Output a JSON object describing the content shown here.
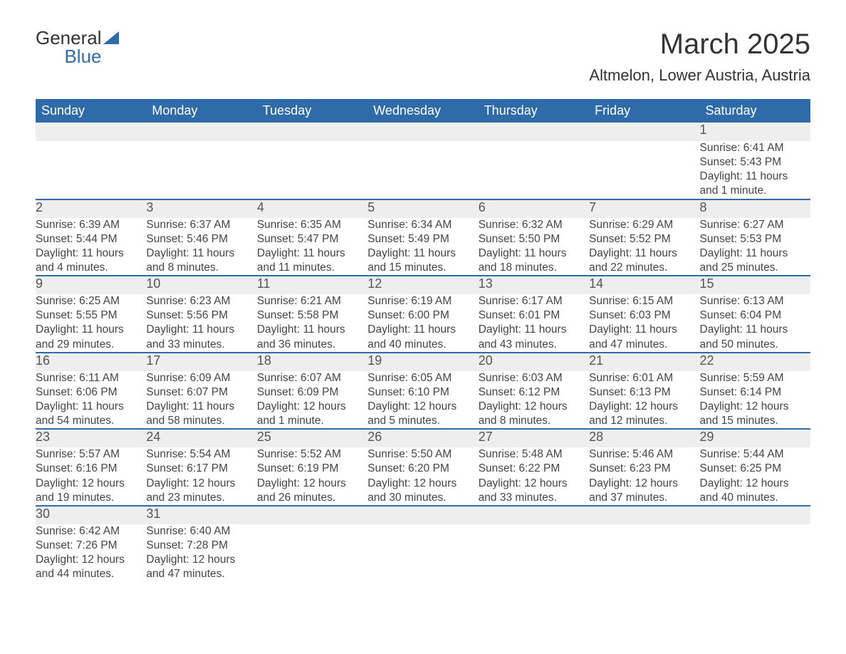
{
  "logo": {
    "line1": "General",
    "line2": "Blue"
  },
  "title": "March 2025",
  "location": "Altmelon, Lower Austria, Austria",
  "colors": {
    "header_bg": "#2f6ba8",
    "header_text": "#ffffff",
    "daynum_bg": "#eeeeee",
    "row_border": "#2f6ba8",
    "body_text": "#444444",
    "page_bg": "#ffffff"
  },
  "weekdays": [
    "Sunday",
    "Monday",
    "Tuesday",
    "Wednesday",
    "Thursday",
    "Friday",
    "Saturday"
  ],
  "weeks": [
    [
      null,
      null,
      null,
      null,
      null,
      null,
      {
        "n": "1",
        "sr": "Sunrise: 6:41 AM",
        "ss": "Sunset: 5:43 PM",
        "d1": "Daylight: 11 hours",
        "d2": "and 1 minute."
      }
    ],
    [
      {
        "n": "2",
        "sr": "Sunrise: 6:39 AM",
        "ss": "Sunset: 5:44 PM",
        "d1": "Daylight: 11 hours",
        "d2": "and 4 minutes."
      },
      {
        "n": "3",
        "sr": "Sunrise: 6:37 AM",
        "ss": "Sunset: 5:46 PM",
        "d1": "Daylight: 11 hours",
        "d2": "and 8 minutes."
      },
      {
        "n": "4",
        "sr": "Sunrise: 6:35 AM",
        "ss": "Sunset: 5:47 PM",
        "d1": "Daylight: 11 hours",
        "d2": "and 11 minutes."
      },
      {
        "n": "5",
        "sr": "Sunrise: 6:34 AM",
        "ss": "Sunset: 5:49 PM",
        "d1": "Daylight: 11 hours",
        "d2": "and 15 minutes."
      },
      {
        "n": "6",
        "sr": "Sunrise: 6:32 AM",
        "ss": "Sunset: 5:50 PM",
        "d1": "Daylight: 11 hours",
        "d2": "and 18 minutes."
      },
      {
        "n": "7",
        "sr": "Sunrise: 6:29 AM",
        "ss": "Sunset: 5:52 PM",
        "d1": "Daylight: 11 hours",
        "d2": "and 22 minutes."
      },
      {
        "n": "8",
        "sr": "Sunrise: 6:27 AM",
        "ss": "Sunset: 5:53 PM",
        "d1": "Daylight: 11 hours",
        "d2": "and 25 minutes."
      }
    ],
    [
      {
        "n": "9",
        "sr": "Sunrise: 6:25 AM",
        "ss": "Sunset: 5:55 PM",
        "d1": "Daylight: 11 hours",
        "d2": "and 29 minutes."
      },
      {
        "n": "10",
        "sr": "Sunrise: 6:23 AM",
        "ss": "Sunset: 5:56 PM",
        "d1": "Daylight: 11 hours",
        "d2": "and 33 minutes."
      },
      {
        "n": "11",
        "sr": "Sunrise: 6:21 AM",
        "ss": "Sunset: 5:58 PM",
        "d1": "Daylight: 11 hours",
        "d2": "and 36 minutes."
      },
      {
        "n": "12",
        "sr": "Sunrise: 6:19 AM",
        "ss": "Sunset: 6:00 PM",
        "d1": "Daylight: 11 hours",
        "d2": "and 40 minutes."
      },
      {
        "n": "13",
        "sr": "Sunrise: 6:17 AM",
        "ss": "Sunset: 6:01 PM",
        "d1": "Daylight: 11 hours",
        "d2": "and 43 minutes."
      },
      {
        "n": "14",
        "sr": "Sunrise: 6:15 AM",
        "ss": "Sunset: 6:03 PM",
        "d1": "Daylight: 11 hours",
        "d2": "and 47 minutes."
      },
      {
        "n": "15",
        "sr": "Sunrise: 6:13 AM",
        "ss": "Sunset: 6:04 PM",
        "d1": "Daylight: 11 hours",
        "d2": "and 50 minutes."
      }
    ],
    [
      {
        "n": "16",
        "sr": "Sunrise: 6:11 AM",
        "ss": "Sunset: 6:06 PM",
        "d1": "Daylight: 11 hours",
        "d2": "and 54 minutes."
      },
      {
        "n": "17",
        "sr": "Sunrise: 6:09 AM",
        "ss": "Sunset: 6:07 PM",
        "d1": "Daylight: 11 hours",
        "d2": "and 58 minutes."
      },
      {
        "n": "18",
        "sr": "Sunrise: 6:07 AM",
        "ss": "Sunset: 6:09 PM",
        "d1": "Daylight: 12 hours",
        "d2": "and 1 minute."
      },
      {
        "n": "19",
        "sr": "Sunrise: 6:05 AM",
        "ss": "Sunset: 6:10 PM",
        "d1": "Daylight: 12 hours",
        "d2": "and 5 minutes."
      },
      {
        "n": "20",
        "sr": "Sunrise: 6:03 AM",
        "ss": "Sunset: 6:12 PM",
        "d1": "Daylight: 12 hours",
        "d2": "and 8 minutes."
      },
      {
        "n": "21",
        "sr": "Sunrise: 6:01 AM",
        "ss": "Sunset: 6:13 PM",
        "d1": "Daylight: 12 hours",
        "d2": "and 12 minutes."
      },
      {
        "n": "22",
        "sr": "Sunrise: 5:59 AM",
        "ss": "Sunset: 6:14 PM",
        "d1": "Daylight: 12 hours",
        "d2": "and 15 minutes."
      }
    ],
    [
      {
        "n": "23",
        "sr": "Sunrise: 5:57 AM",
        "ss": "Sunset: 6:16 PM",
        "d1": "Daylight: 12 hours",
        "d2": "and 19 minutes."
      },
      {
        "n": "24",
        "sr": "Sunrise: 5:54 AM",
        "ss": "Sunset: 6:17 PM",
        "d1": "Daylight: 12 hours",
        "d2": "and 23 minutes."
      },
      {
        "n": "25",
        "sr": "Sunrise: 5:52 AM",
        "ss": "Sunset: 6:19 PM",
        "d1": "Daylight: 12 hours",
        "d2": "and 26 minutes."
      },
      {
        "n": "26",
        "sr": "Sunrise: 5:50 AM",
        "ss": "Sunset: 6:20 PM",
        "d1": "Daylight: 12 hours",
        "d2": "and 30 minutes."
      },
      {
        "n": "27",
        "sr": "Sunrise: 5:48 AM",
        "ss": "Sunset: 6:22 PM",
        "d1": "Daylight: 12 hours",
        "d2": "and 33 minutes."
      },
      {
        "n": "28",
        "sr": "Sunrise: 5:46 AM",
        "ss": "Sunset: 6:23 PM",
        "d1": "Daylight: 12 hours",
        "d2": "and 37 minutes."
      },
      {
        "n": "29",
        "sr": "Sunrise: 5:44 AM",
        "ss": "Sunset: 6:25 PM",
        "d1": "Daylight: 12 hours",
        "d2": "and 40 minutes."
      }
    ],
    [
      {
        "n": "30",
        "sr": "Sunrise: 6:42 AM",
        "ss": "Sunset: 7:26 PM",
        "d1": "Daylight: 12 hours",
        "d2": "and 44 minutes."
      },
      {
        "n": "31",
        "sr": "Sunrise: 6:40 AM",
        "ss": "Sunset: 7:28 PM",
        "d1": "Daylight: 12 hours",
        "d2": "and 47 minutes."
      },
      null,
      null,
      null,
      null,
      null
    ]
  ]
}
